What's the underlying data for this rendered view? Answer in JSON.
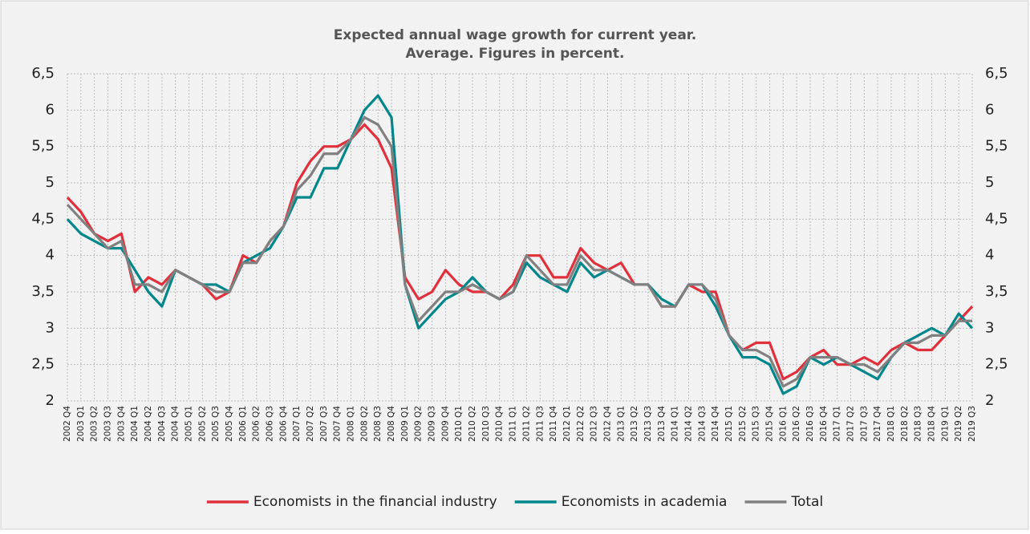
{
  "chart_data": {
    "type": "line",
    "title": [
      "Expected annual wage growth for current year.",
      "Average. Figures in percent."
    ],
    "categories": [
      "2002 Q4",
      "2003 Q1",
      "2003 Q2",
      "2003 Q3",
      "2003 Q4",
      "2004 Q1",
      "2004 Q2",
      "2004 Q3",
      "2004 Q4",
      "2005 Q1",
      "2005 Q2",
      "2005 Q3",
      "2005 Q4",
      "2006 Q1",
      "2006 Q2",
      "2006 Q3",
      "2006 Q4",
      "2007 Q1",
      "2007 Q2",
      "2007 Q3",
      "2007 Q4",
      "2008 Q1",
      "2008 Q2",
      "2008 Q3",
      "2008 Q4",
      "2009 Q1",
      "2009 Q2",
      "2009 Q3",
      "2009 Q4",
      "2010 Q1",
      "2010 Q2",
      "2010 Q3",
      "2010 Q4",
      "2011 Q1",
      "2011 Q2",
      "2011 Q3",
      "2011 Q4",
      "2012 Q1",
      "2012 Q2",
      "2012 Q3",
      "2012 Q4",
      "2013 Q1",
      "2013 Q2",
      "2013 Q3",
      "2013 Q4",
      "2014 Q1",
      "2014 Q2",
      "2014 Q3",
      "2014 Q4",
      "2015 Q1",
      "2015 Q2",
      "2015 Q3",
      "2015 Q4",
      "2016 Q1",
      "2016 Q2",
      "2016 Q3",
      "2016 Q4",
      "2017 Q1",
      "2017 Q2",
      "2017 Q3",
      "2017 Q4",
      "2018 Q1",
      "2018 Q2",
      "2018 Q3",
      "2018 Q4",
      "2019 Q1",
      "2019 Q2",
      "2019 Q3"
    ],
    "series": [
      {
        "name": "Economists in the financial industry",
        "color": "#e0303c",
        "values": [
          4.8,
          4.6,
          4.3,
          4.2,
          4.3,
          3.5,
          3.7,
          3.6,
          3.8,
          3.7,
          3.6,
          3.4,
          3.5,
          4.0,
          3.9,
          4.2,
          4.4,
          5.0,
          5.3,
          5.5,
          5.5,
          5.6,
          5.8,
          5.6,
          5.2,
          3.7,
          3.4,
          3.5,
          3.8,
          3.6,
          3.5,
          3.5,
          3.4,
          3.6,
          4.0,
          4.0,
          3.7,
          3.7,
          4.1,
          3.9,
          3.8,
          3.9,
          3.6,
          3.6,
          3.3,
          3.3,
          3.6,
          3.5,
          3.5,
          2.9,
          2.7,
          2.8,
          2.8,
          2.3,
          2.4,
          2.6,
          2.7,
          2.5,
          2.5,
          2.6,
          2.5,
          2.7,
          2.8,
          2.7,
          2.7,
          2.9,
          3.1,
          3.3
        ]
      },
      {
        "name": "Economists in academia",
        "color": "#00868b",
        "values": [
          4.5,
          4.3,
          4.2,
          4.1,
          4.1,
          3.8,
          3.5,
          3.3,
          3.8,
          3.7,
          3.6,
          3.6,
          3.5,
          3.9,
          4.0,
          4.1,
          4.4,
          4.8,
          4.8,
          5.2,
          5.2,
          5.6,
          6.0,
          6.2,
          5.9,
          3.6,
          3.0,
          3.2,
          3.4,
          3.5,
          3.7,
          3.5,
          3.4,
          3.5,
          3.9,
          3.7,
          3.6,
          3.5,
          3.9,
          3.7,
          3.8,
          3.7,
          3.6,
          3.6,
          3.4,
          3.3,
          3.6,
          3.6,
          3.3,
          2.9,
          2.6,
          2.6,
          2.5,
          2.1,
          2.2,
          2.6,
          2.5,
          2.6,
          2.5,
          2.4,
          2.3,
          2.6,
          2.8,
          2.9,
          3.0,
          2.9,
          3.2,
          3.0
        ]
      },
      {
        "name": "Total",
        "color": "#808080",
        "values": [
          4.7,
          4.5,
          4.3,
          4.1,
          4.2,
          3.6,
          3.6,
          3.5,
          3.8,
          3.7,
          3.6,
          3.5,
          3.5,
          3.9,
          3.9,
          4.2,
          4.4,
          4.9,
          5.1,
          5.4,
          5.4,
          5.6,
          5.9,
          5.8,
          5.5,
          3.6,
          3.1,
          3.3,
          3.5,
          3.5,
          3.6,
          3.5,
          3.4,
          3.5,
          4.0,
          3.8,
          3.6,
          3.6,
          4.0,
          3.8,
          3.8,
          3.7,
          3.6,
          3.6,
          3.3,
          3.3,
          3.6,
          3.6,
          3.4,
          2.9,
          2.7,
          2.7,
          2.6,
          2.2,
          2.3,
          2.6,
          2.6,
          2.6,
          2.5,
          2.5,
          2.4,
          2.6,
          2.8,
          2.8,
          2.9,
          2.9,
          3.1,
          3.1
        ]
      }
    ],
    "ylim": [
      2,
      6.5
    ],
    "yticks": [
      2,
      {
        "value": 2.5,
        "label": "2,5"
      },
      3,
      {
        "value": 3.5,
        "label": "3,5"
      },
      4,
      {
        "value": 4.5,
        "label": "4,5"
      },
      5,
      {
        "value": 5.5,
        "label": "5,5"
      },
      6,
      {
        "value": 6.5,
        "label": "6,5"
      }
    ],
    "y2lim": [
      2,
      6.5
    ],
    "y2ticks": [
      2,
      {
        "value": 2.5,
        "label": "2,5"
      },
      3,
      {
        "value": 3.5,
        "label": "3,5"
      },
      4,
      {
        "value": 4.5,
        "label": "4,5"
      },
      5,
      {
        "value": 5.5,
        "label": "5,5"
      },
      6,
      {
        "value": 6.5,
        "label": "6,5"
      }
    ],
    "grid": true,
    "legend": "bottom"
  }
}
